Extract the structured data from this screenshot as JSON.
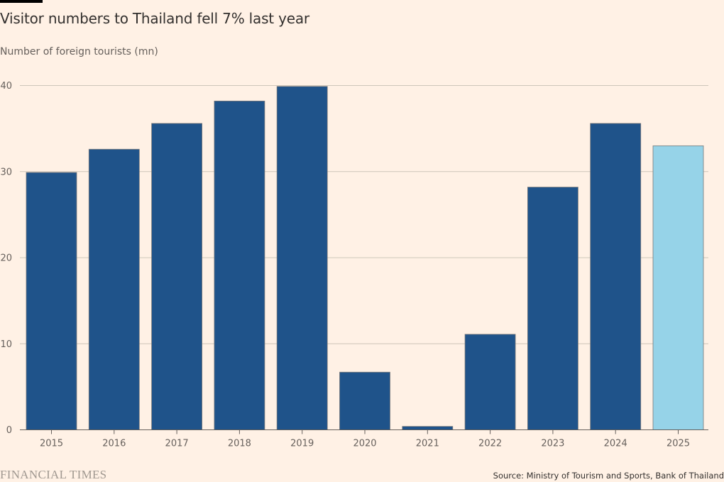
{
  "title": "Visitor numbers to Thailand fell 7% last year",
  "subtitle": "Number of foreign tourists (mn)",
  "source": "Source: Ministry of Tourism and Sports, Bank of Thailand",
  "brand": "FINANCIAL TIMES",
  "colors": {
    "background": "#FFF1E5",
    "bar": "#1F538A",
    "highlight_bar": "#96D3E8",
    "gridline": "#CEC6B9",
    "axis": "#66605C"
  },
  "chart_data": {
    "type": "bar",
    "title": "Visitor numbers to Thailand fell 7% last year",
    "subtitle": "Number of foreign tourists (mn)",
    "xlabel": "",
    "ylabel": "Number of foreign tourists (mn)",
    "categories": [
      "2015",
      "2016",
      "2017",
      "2018",
      "2019",
      "2020",
      "2021",
      "2022",
      "2023",
      "2024",
      "2025"
    ],
    "values": [
      29.9,
      32.6,
      35.6,
      38.2,
      39.9,
      6.7,
      0.4,
      11.1,
      28.2,
      35.6,
      33.0
    ],
    "highlight": [
      "2025"
    ],
    "ylim": [
      0,
      40
    ],
    "yticks": [
      "0",
      "10",
      "20",
      "30",
      "40"
    ],
    "grid": true,
    "legend": "none"
  }
}
